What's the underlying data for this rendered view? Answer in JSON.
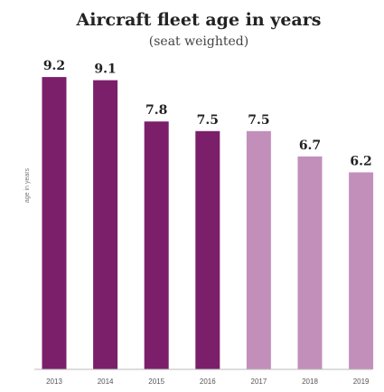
{
  "chart_data": {
    "type": "bar",
    "title": "Aircraft fleet age in years",
    "subtitle": "(seat weighted)",
    "ylabel": "age in years",
    "xlabel": "",
    "categories": [
      "2013",
      "2014",
      "2015",
      "2016",
      "2017",
      "2018",
      "2019"
    ],
    "values": [
      9.2,
      9.1,
      7.8,
      7.5,
      7.5,
      6.7,
      6.2
    ],
    "data_labels": [
      "9.2",
      "9.1",
      "7.8",
      "7.5",
      "7.5",
      "6.7",
      "6.2"
    ],
    "ylim": [
      0,
      10
    ],
    "grid": false,
    "legend": "none",
    "colors": {
      "actual": "#7b1f6b",
      "forecast": "#c28fbb",
      "baseline": "#bbbbbb"
    },
    "bar_color_keys": [
      "actual",
      "actual",
      "actual",
      "actual",
      "forecast",
      "forecast",
      "forecast"
    ]
  }
}
